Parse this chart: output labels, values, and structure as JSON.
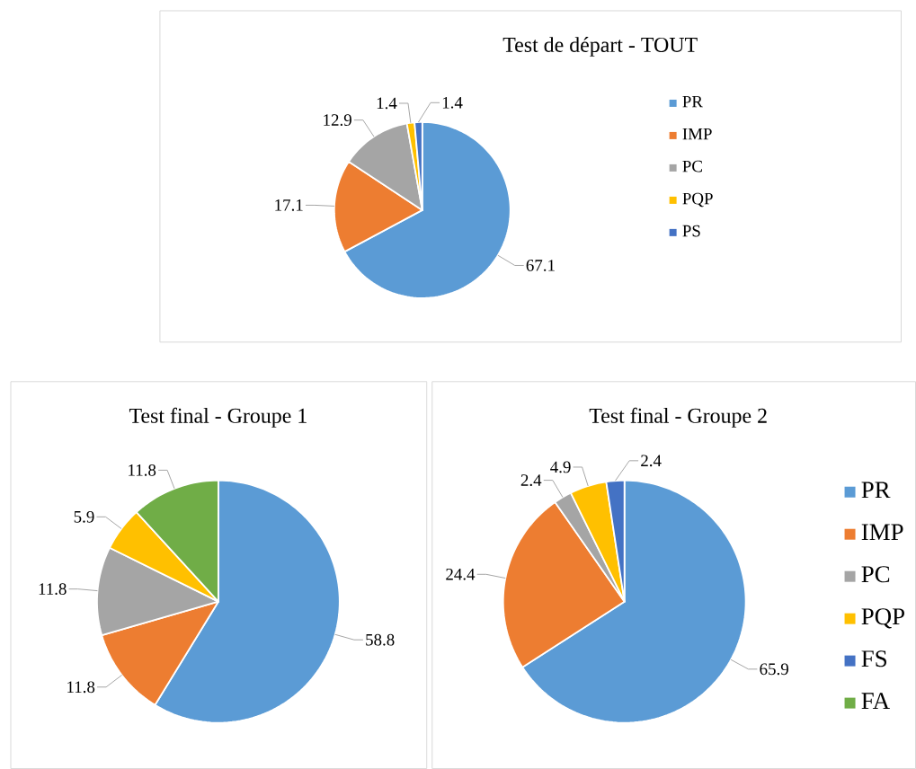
{
  "chart_data": [
    {
      "type": "pie",
      "title": "Test de départ - TOUT",
      "categories": [
        "PR",
        "IMP",
        "PC",
        "PQP",
        "PS"
      ],
      "values": [
        67.1,
        17.1,
        12.9,
        1.4,
        1.4
      ],
      "colors": [
        "#5b9bd5",
        "#ed7d31",
        "#a5a5a5",
        "#ffc000",
        "#4472c4"
      ],
      "data_labels": true,
      "legend": "right"
    },
    {
      "type": "pie",
      "title": "Test final - Groupe 1",
      "categories": [
        null,
        null,
        null,
        null,
        null
      ],
      "values": [
        58.8,
        11.8,
        11.8,
        5.9,
        11.8
      ],
      "colors": [
        "#5b9bd5",
        "#ed7d31",
        "#a5a5a5",
        "#ffc000",
        "#70ad47"
      ],
      "data_labels": true
    },
    {
      "type": "pie",
      "title": "Test final - Groupe 2",
      "categories": [
        "PR",
        "IMP",
        "PC",
        "PQP",
        "FS",
        "FA"
      ],
      "values": [
        65.9,
        24.4,
        2.4,
        4.9,
        2.4,
        0
      ],
      "colors": [
        "#5b9bd5",
        "#ed7d31",
        "#a5a5a5",
        "#ffc000",
        "#4472c4",
        "#70ad47"
      ],
      "value_labels": [
        "65.9",
        "24.4",
        "2.4",
        "4.9",
        "2.4",
        null
      ],
      "legend": "right"
    }
  ]
}
